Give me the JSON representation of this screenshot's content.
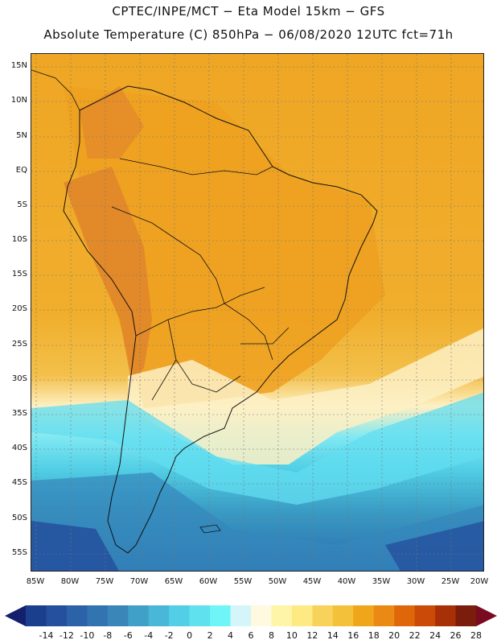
{
  "header": {
    "line1": "CPTEC/INPE/MCT −  Eta Model 15km − GFS",
    "line2": "Absolute Temperature (C) 850hPa − 06/08/2020 12UTC fct=71h"
  },
  "axes": {
    "lat_labels": [
      "15N",
      "10N",
      "5N",
      "EQ",
      "5S",
      "10S",
      "15S",
      "20S",
      "25S",
      "30S",
      "35S",
      "40S",
      "45S",
      "50S",
      "55S"
    ],
    "lon_labels": [
      "85W",
      "80W",
      "75W",
      "70W",
      "65W",
      "60W",
      "55W",
      "50W",
      "45W",
      "40W",
      "35W",
      "30W",
      "25W",
      "20W"
    ]
  },
  "colorbar": {
    "labels": [
      "-14",
      "-12",
      "-10",
      "-8",
      "-6",
      "-4",
      "-2",
      "0",
      "2",
      "4",
      "6",
      "8",
      "10",
      "12",
      "14",
      "16",
      "18",
      "20",
      "22",
      "24",
      "26",
      "28"
    ],
    "colors": [
      "#1a3f8c",
      "#24509e",
      "#2b62a8",
      "#3274b0",
      "#3a86b8",
      "#41a0c8",
      "#49b8d8",
      "#52cfe6",
      "#5fe2ee",
      "#6ef5f8",
      "#d4f6fb",
      "#fff9e0",
      "#fff5a8",
      "#fdea82",
      "#f8d35c",
      "#f4c13a",
      "#f0a61a",
      "#ea8a14",
      "#e0660a",
      "#cc4a08",
      "#a83006",
      "#7a1d0c"
    ],
    "under_color": "#141f6e",
    "over_color": "#7a0a20"
  },
  "field_colors": {
    "hot": "#e0862a",
    "warm": "#efaa26",
    "mild": "#f0b640",
    "pale": "#fdf0c4",
    "cold": "#57d7ea",
    "deep": "#3a9cc4",
    "deepest": "#2860a8",
    "land_line": "#111111"
  }
}
